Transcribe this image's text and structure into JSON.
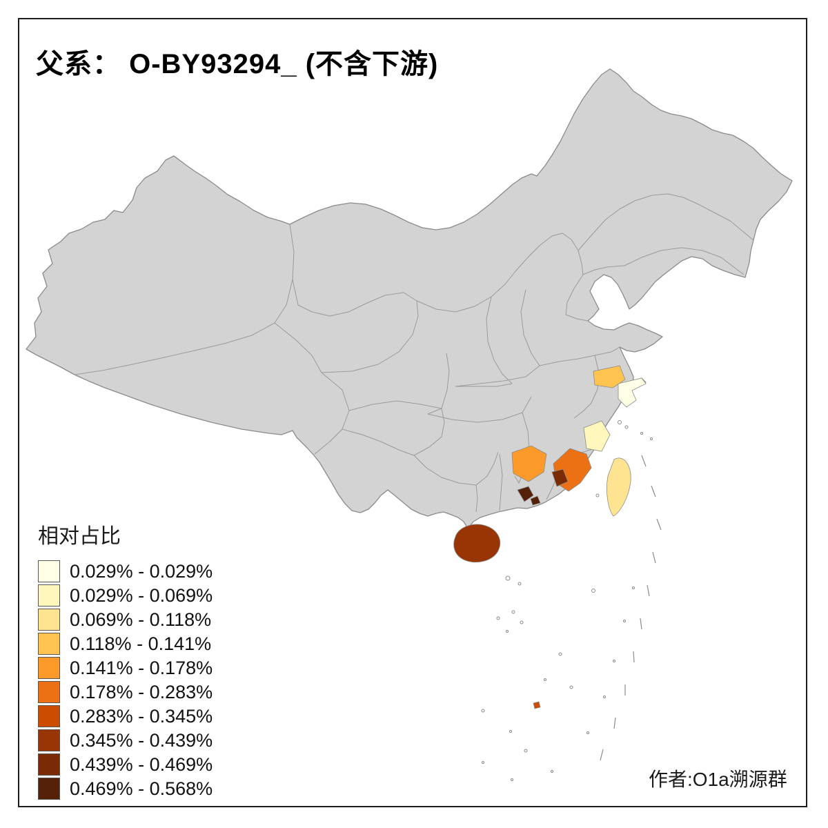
{
  "title": "父系： O-BY93294_ (不含下游)",
  "credit": "作者:O1a溯源群",
  "legend": {
    "title": "相对占比",
    "items": [
      {
        "label": "0.029% - 0.029%",
        "color": "#FFFFE5"
      },
      {
        "label": "0.029% - 0.069%",
        "color": "#FFF7BC"
      },
      {
        "label": "0.069% - 0.118%",
        "color": "#FEE391"
      },
      {
        "label": "0.118% - 0.141%",
        "color": "#FEC44F"
      },
      {
        "label": "0.141% - 0.178%",
        "color": "#FB9A29"
      },
      {
        "label": "0.178% - 0.283%",
        "color": "#EC7014"
      },
      {
        "label": "0.283% - 0.345%",
        "color": "#CC4C02"
      },
      {
        "label": "0.345% - 0.439%",
        "color": "#993404"
      },
      {
        "label": "0.439% - 0.469%",
        "color": "#7A2B05"
      },
      {
        "label": "0.469% - 0.568%",
        "color": "#542008"
      }
    ]
  },
  "map": {
    "base_fill": "#D3D3D3",
    "border_color": "#8A8A8A",
    "regions": [
      {
        "id": "shanghai-region",
        "color": "#FFFFE5"
      },
      {
        "id": "zhejiang-coastal-region",
        "color": "#FFF7BC"
      },
      {
        "id": "taiwan-region",
        "color": "#FEE391"
      },
      {
        "id": "southern-jiangsu-region",
        "color": "#FEC44F"
      },
      {
        "id": "northern-guangdong-region",
        "color": "#FB9A29"
      },
      {
        "id": "fujian-region",
        "color": "#EC7014"
      },
      {
        "id": "south-sea-islet-region",
        "color": "#CC4C02"
      },
      {
        "id": "hainan-region",
        "color": "#993404"
      },
      {
        "id": "southwest-fujian-region",
        "color": "#7A2B05"
      },
      {
        "id": "pearl-river-delta-region",
        "color": "#542008"
      }
    ]
  }
}
